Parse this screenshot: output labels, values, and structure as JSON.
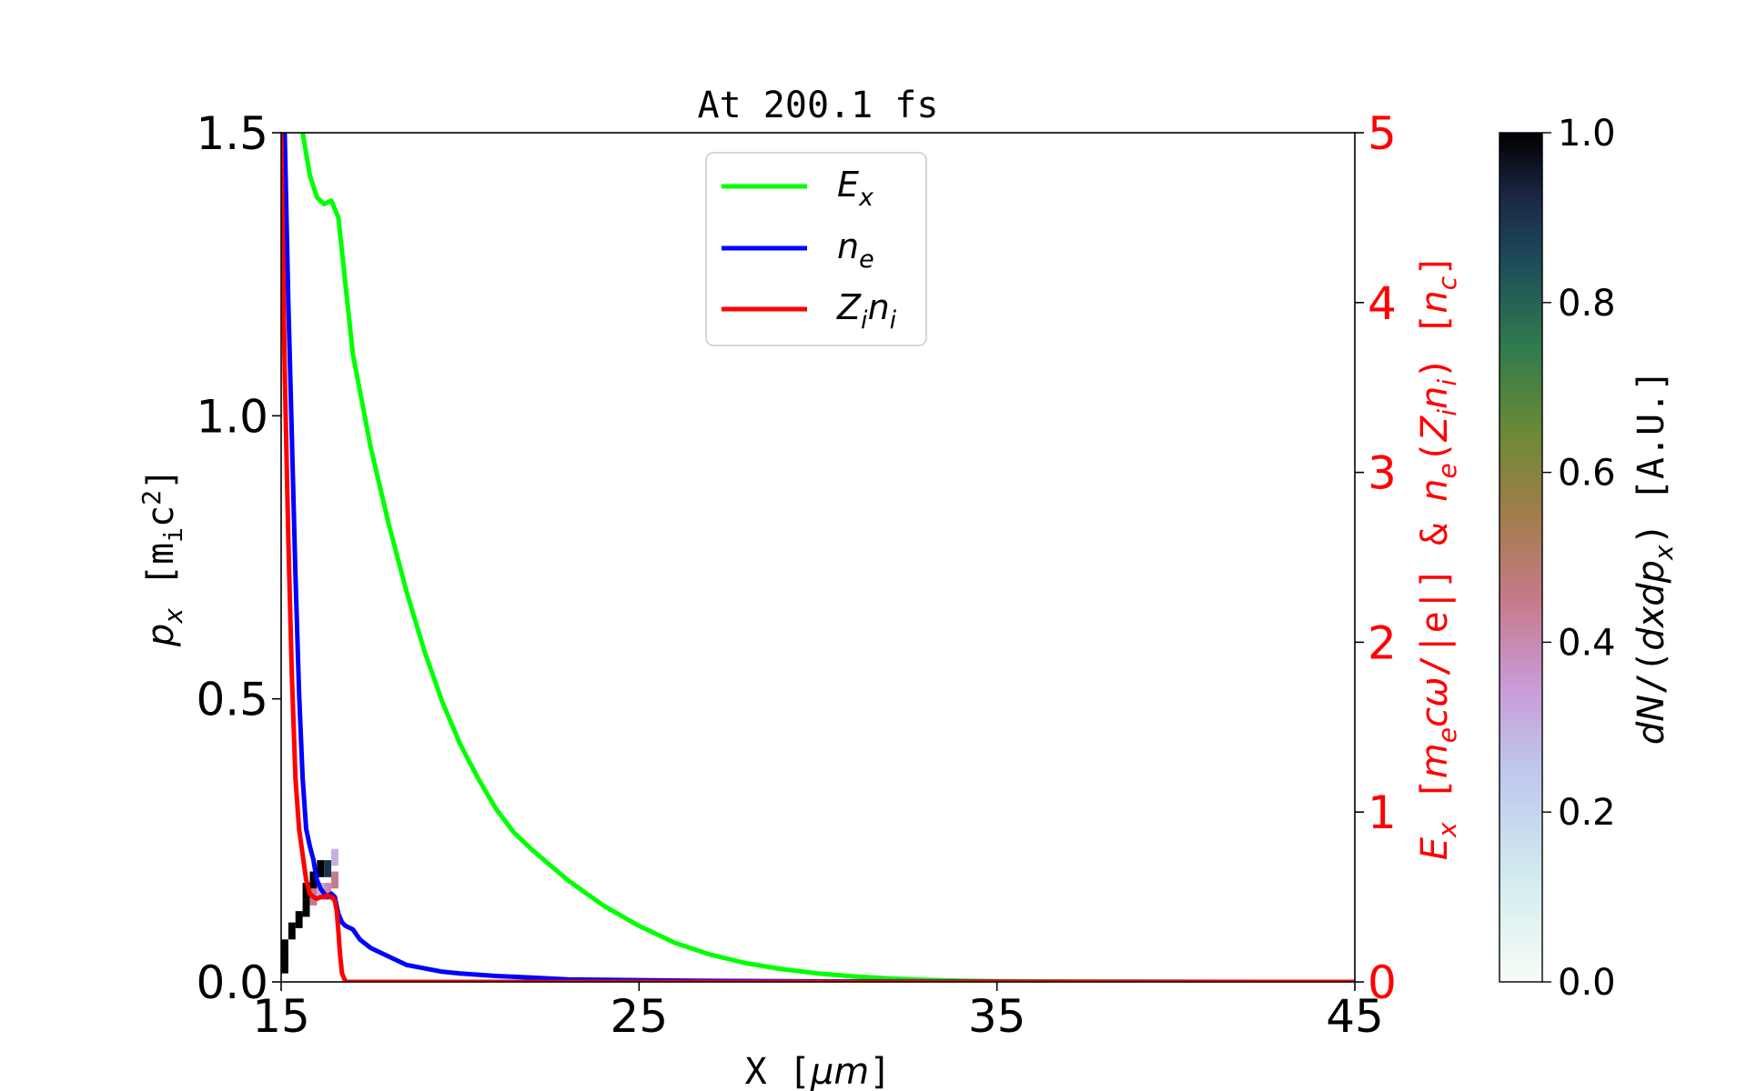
{
  "chart_data": {
    "type": "line",
    "title": "At 200.1 fs",
    "xlabel": "X  [μm]",
    "ylabel": "p_x  [m_ic²]",
    "y2label": "E_x  [m_ecω/|e|]  &  n_e(Z_in_i)  [n_c]",
    "colorbar_label": "dN/(dxdp_x)  [A.U.]",
    "xlim": [
      15,
      45
    ],
    "ylim": [
      0,
      1.5
    ],
    "y2lim": [
      0,
      5
    ],
    "clim": [
      0,
      1
    ],
    "x_ticks": [
      "15",
      "25",
      "35",
      "45"
    ],
    "y_ticks": [
      "0.0",
      "0.5",
      "1.0",
      "1.5"
    ],
    "y2_ticks": [
      "0",
      "1",
      "2",
      "3",
      "4",
      "5"
    ],
    "cbar_ticks": [
      "0.0",
      "0.2",
      "0.4",
      "0.6",
      "0.8",
      "1.0"
    ],
    "legend_position": "upper center",
    "series": [
      {
        "name": "E_x",
        "axis": "right",
        "color": "#00ff00",
        "x": [
          15.6,
          15.8,
          16.0,
          16.2,
          16.4,
          16.6,
          16.8,
          17.0,
          17.5,
          18.0,
          18.5,
          19.0,
          19.5,
          20.0,
          20.5,
          21.0,
          21.5,
          22.0,
          23.0,
          24.0,
          25.0,
          26.0,
          27.0,
          28.0,
          29.0,
          30.0,
          31.0,
          32.0,
          33.0,
          34.0,
          35.0,
          38.0,
          41.0,
          45.0
        ],
        "y": [
          5.0,
          4.75,
          4.62,
          4.58,
          4.6,
          4.5,
          4.1,
          3.7,
          3.15,
          2.7,
          2.3,
          1.95,
          1.65,
          1.4,
          1.2,
          1.02,
          0.88,
          0.78,
          0.6,
          0.45,
          0.33,
          0.23,
          0.16,
          0.11,
          0.075,
          0.05,
          0.032,
          0.02,
          0.012,
          0.007,
          0.004,
          0.001,
          0.0,
          0.0
        ]
      },
      {
        "name": "n_e",
        "axis": "right",
        "color": "#0000ff",
        "x": [
          15.1,
          15.2,
          15.3,
          15.4,
          15.5,
          15.6,
          15.7,
          15.8,
          15.9,
          16.0,
          16.1,
          16.2,
          16.3,
          16.4,
          16.5,
          16.6,
          16.7,
          16.8,
          17.0,
          17.2,
          17.5,
          18.0,
          18.5,
          19.0,
          19.5,
          20.0,
          21.0,
          22.0,
          23.0,
          25.0,
          27.0,
          30.0,
          35.0,
          45.0
        ],
        "y": [
          5.0,
          4.0,
          3.2,
          2.4,
          1.7,
          1.2,
          0.9,
          0.8,
          0.72,
          0.6,
          0.55,
          0.52,
          0.5,
          0.52,
          0.5,
          0.4,
          0.35,
          0.33,
          0.31,
          0.25,
          0.2,
          0.15,
          0.1,
          0.08,
          0.06,
          0.05,
          0.035,
          0.025,
          0.015,
          0.01,
          0.006,
          0.003,
          0.001,
          0.0
        ]
      },
      {
        "name": "Z_in_i",
        "axis": "right",
        "color": "#ff0000",
        "x": [
          15.0,
          15.1,
          15.2,
          15.3,
          15.4,
          15.5,
          15.6,
          15.7,
          15.8,
          15.9,
          16.0,
          16.1,
          16.2,
          16.3,
          16.4,
          16.5,
          16.55,
          16.6,
          16.65,
          16.7,
          16.8,
          17.0,
          20.0,
          30.0,
          45.0
        ],
        "y": [
          5.0,
          3.6,
          2.6,
          1.8,
          1.2,
          0.9,
          0.75,
          0.6,
          0.52,
          0.5,
          0.49,
          0.5,
          0.5,
          0.51,
          0.5,
          0.48,
          0.42,
          0.3,
          0.15,
          0.05,
          0.0,
          0.0,
          0.0,
          0.0,
          0.0
        ]
      }
    ],
    "phase_space": {
      "description_unit": "px [m_i c^2] vs X [um]",
      "cells": [
        {
          "x": 15.1,
          "y": 0.03,
          "v": 1.0
        },
        {
          "x": 15.1,
          "y": 0.06,
          "v": 1.0
        },
        {
          "x": 15.3,
          "y": 0.09,
          "v": 1.0
        },
        {
          "x": 15.5,
          "y": 0.11,
          "v": 1.0
        },
        {
          "x": 15.7,
          "y": 0.13,
          "v": 1.0
        },
        {
          "x": 15.7,
          "y": 0.16,
          "v": 1.0
        },
        {
          "x": 15.9,
          "y": 0.15,
          "v": 0.45
        },
        {
          "x": 15.9,
          "y": 0.18,
          "v": 1.0
        },
        {
          "x": 16.1,
          "y": 0.16,
          "v": 0.3
        },
        {
          "x": 16.1,
          "y": 0.2,
          "v": 1.0
        },
        {
          "x": 16.3,
          "y": 0.16,
          "v": 0.4
        },
        {
          "x": 16.3,
          "y": 0.2,
          "v": 0.9
        },
        {
          "x": 16.5,
          "y": 0.18,
          "v": 0.45
        },
        {
          "x": 16.5,
          "y": 0.22,
          "v": 0.3
        }
      ]
    }
  }
}
